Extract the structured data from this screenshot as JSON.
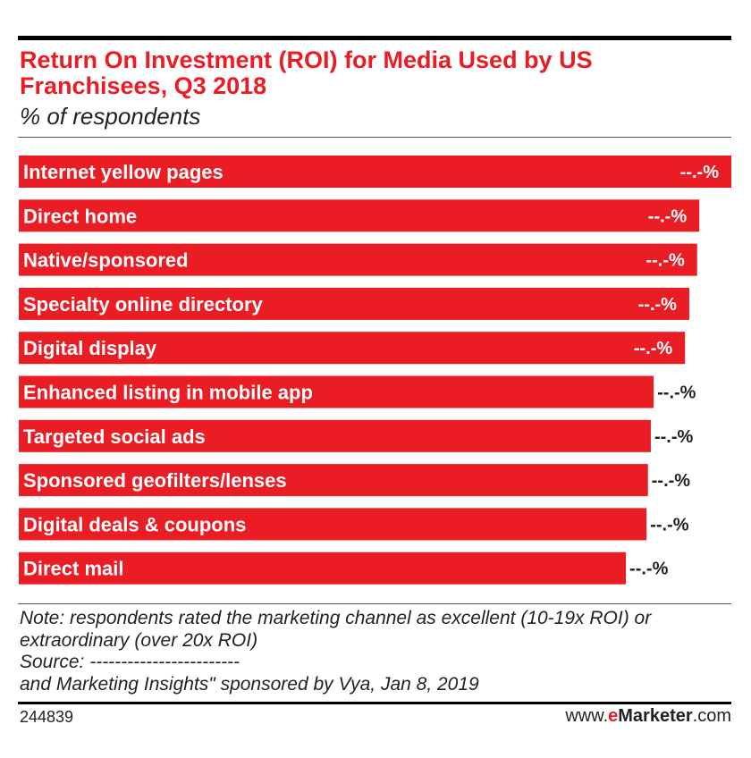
{
  "header": {
    "title": "Return On Investment (ROI) for Media Used by US Franchisees, Q3 2018",
    "subtitle": "% of respondents"
  },
  "chart_data": {
    "type": "bar",
    "orientation": "horizontal",
    "categories": [
      "Internet yellow pages",
      "Direct home",
      "Native/sponsored",
      "Specialty online directory",
      "Digital display",
      "Enhanced listing in mobile app",
      "Targeted social ads",
      "Sponsored geofilters/lenses",
      "Digital deals & coupons",
      "Direct mail"
    ],
    "values": [
      100,
      95.5,
      95.2,
      94.1,
      93.5,
      89.1,
      88.7,
      88.3,
      88.1,
      85.2
    ],
    "value_labels": [
      "--.-%",
      "--.-%",
      "--.-%",
      "--.-%",
      "--.-%",
      "--.-%",
      "--.-%",
      "--.-%",
      "--.-%",
      "--.-%"
    ],
    "bar_color": "#ea1c24",
    "grid": false,
    "legend": "none"
  },
  "footer": {
    "notes": [
      "Note: respondents rated the marketing channel as excellent (10-19x ROI) or",
      "extraordinary (over 20x ROI)",
      "Source: ------------------------",
      "and Marketing Insights\" sponsored by Vya, Jan 8, 2019"
    ],
    "chart_id": "244839",
    "brand_prefix": "www.",
    "brand_e": "e",
    "brand_name": "Marketer",
    "brand_suffix": ".com"
  }
}
